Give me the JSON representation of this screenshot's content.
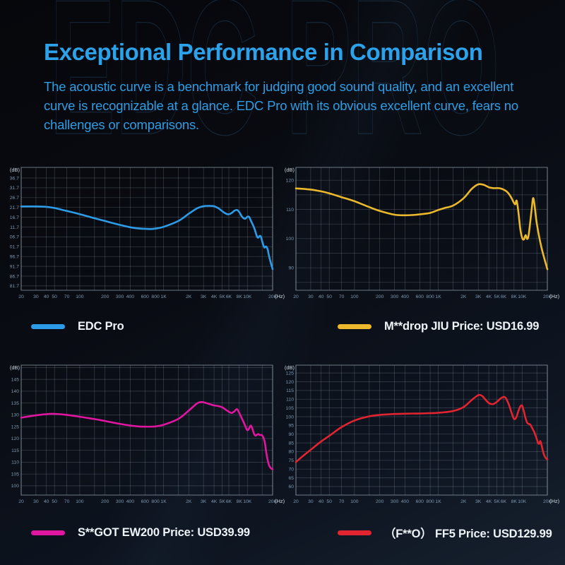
{
  "watermark": "EDC PRO",
  "header": {
    "title": "Exceptional Performance in Comparison",
    "description_lines": [
      "The acoustic curve is a benchmark for judging good sound quality, and an excellent",
      "curve is recognizable at a glance. EDC Pro with its obvious excellent curve, fears no",
      "challenges or comparisons."
    ]
  },
  "colors": {
    "accent_blue": "#2ba2ea",
    "curve_blue": "#2d9ce8",
    "curve_yellow": "#ecb82c",
    "curve_magenta": "#e016a0",
    "curve_red": "#e1242f",
    "grid": "rgba(190,205,220,0.26)",
    "plot_border": "rgba(190,205,220,0.55)",
    "tick_text": "#7e97ae",
    "unit_text": "#cdd9e4"
  },
  "legends": [
    {
      "label": "EDC Pro",
      "color": "#2d9ce8"
    },
    {
      "label": "M**drop JIU Price: USD16.99",
      "color": "#ecb82c"
    },
    {
      "label": "S**GOT EW200 Price: USD39.99",
      "color": "#e016a0"
    },
    {
      "label": "（F**O） FF5 Price: USD129.99",
      "color": "#e1242f"
    }
  ],
  "chart_data": [
    {
      "type": "line",
      "name": "EDC Pro",
      "color": "#2d9ce8",
      "x_unit": "(Hz)",
      "y_unit": "(dB)",
      "x_scale": "log",
      "x_tick_labels": [
        "20",
        "30",
        "40",
        "50",
        "70",
        "100",
        "200",
        "300",
        "400",
        "600",
        "800",
        "1K",
        "2K",
        "3K",
        "4K",
        "5K",
        "6K",
        "8K",
        "10K",
        "20K"
      ],
      "x_tick_freqs": [
        20,
        30,
        40,
        50,
        70,
        100,
        200,
        300,
        400,
        600,
        800,
        1000,
        2000,
        3000,
        4000,
        5000,
        6000,
        8000,
        10000,
        20000
      ],
      "grid_freqs": [
        20,
        30,
        40,
        50,
        70,
        100,
        150,
        200,
        300,
        400,
        600,
        800,
        1000,
        1500,
        2000,
        3000,
        4000,
        5000,
        6000,
        8000,
        10000,
        15000,
        20000
      ],
      "y_tick_values": [
        136.7,
        131.7,
        126.7,
        121.7,
        116.7,
        111.7,
        106.7,
        101.7,
        96.7,
        91.7,
        86.7,
        81.7
      ],
      "y_grid": [
        81.7,
        136.7,
        5
      ],
      "ylim": [
        79.5,
        142.1
      ],
      "points": [
        [
          20,
          122.2
        ],
        [
          30,
          122.2
        ],
        [
          40,
          122.0
        ],
        [
          50,
          121.4
        ],
        [
          70,
          119.9
        ],
        [
          100,
          118.3
        ],
        [
          150,
          116.2
        ],
        [
          200,
          114.8
        ],
        [
          300,
          112.8
        ],
        [
          400,
          111.6
        ],
        [
          500,
          111.0
        ],
        [
          600,
          110.8
        ],
        [
          700,
          110.7
        ],
        [
          800,
          110.9
        ],
        [
          1000,
          111.8
        ],
        [
          1500,
          114.8
        ],
        [
          2000,
          118.5
        ],
        [
          2500,
          121.2
        ],
        [
          3000,
          122.3
        ],
        [
          3500,
          122.5
        ],
        [
          4000,
          122.3
        ],
        [
          4500,
          121.3
        ],
        [
          5000,
          119.8
        ],
        [
          5500,
          118.6
        ],
        [
          6000,
          118.2
        ],
        [
          6500,
          118.9
        ],
        [
          7000,
          120.0
        ],
        [
          7500,
          120.4
        ],
        [
          8000,
          119.3
        ],
        [
          8500,
          117.4
        ],
        [
          9000,
          116.2
        ],
        [
          9500,
          116.0
        ],
        [
          10000,
          117.0
        ],
        [
          10500,
          116.8
        ],
        [
          11000,
          115.0
        ],
        [
          12000,
          111.5
        ],
        [
          13000,
          107.0
        ],
        [
          13500,
          106.3
        ],
        [
          14000,
          107.2
        ],
        [
          14500,
          106.8
        ],
        [
          15000,
          104.5
        ],
        [
          15500,
          102.5
        ],
        [
          16000,
          101.2
        ],
        [
          16500,
          101.8
        ],
        [
          17000,
          101.5
        ],
        [
          17500,
          100.2
        ],
        [
          18000,
          97.5
        ],
        [
          19000,
          93.5
        ],
        [
          20000,
          90.3
        ]
      ]
    },
    {
      "type": "line",
      "name": "M**drop JIU",
      "color": "#ecb82c",
      "x_unit": "(Hz)",
      "y_unit": "(dB)",
      "x_scale": "log",
      "x_tick_labels": [
        "20",
        "30",
        "40",
        "50",
        "70",
        "100",
        "200",
        "300",
        "400",
        "600",
        "800",
        "1K",
        "2K",
        "3K",
        "4K",
        "5K",
        "6K",
        "8K",
        "10K",
        "20K"
      ],
      "x_tick_freqs": [
        20,
        30,
        40,
        50,
        70,
        100,
        200,
        300,
        400,
        600,
        800,
        1000,
        2000,
        3000,
        4000,
        5000,
        6000,
        8000,
        10000,
        20000
      ],
      "grid_freqs": [
        20,
        30,
        40,
        50,
        70,
        100,
        150,
        200,
        300,
        400,
        600,
        800,
        1000,
        1500,
        2000,
        3000,
        4000,
        5000,
        6000,
        8000,
        10000,
        15000,
        20000
      ],
      "y_tick_values": [
        120,
        110,
        100,
        90
      ],
      "y_grid": [
        85,
        120,
        5
      ],
      "ylim": [
        82.3,
        124.4
      ],
      "points": [
        [
          20,
          117.2
        ],
        [
          30,
          116.8
        ],
        [
          40,
          116.2
        ],
        [
          50,
          115.5
        ],
        [
          70,
          114.2
        ],
        [
          100,
          112.8
        ],
        [
          150,
          110.8
        ],
        [
          200,
          109.5
        ],
        [
          300,
          108.2
        ],
        [
          400,
          108.0
        ],
        [
          500,
          108.1
        ],
        [
          600,
          108.3
        ],
        [
          800,
          108.8
        ],
        [
          1000,
          109.8
        ],
        [
          1200,
          110.5
        ],
        [
          1500,
          111.3
        ],
        [
          2000,
          113.8
        ],
        [
          2500,
          117.0
        ],
        [
          3000,
          118.6
        ],
        [
          3500,
          118.4
        ],
        [
          4000,
          117.6
        ],
        [
          4500,
          117.3
        ],
        [
          5000,
          117.3
        ],
        [
          5500,
          117.2
        ],
        [
          6000,
          116.8
        ],
        [
          6500,
          116.2
        ],
        [
          7000,
          115.2
        ],
        [
          7500,
          113.8
        ],
        [
          8000,
          112.2
        ],
        [
          8300,
          111.8
        ],
        [
          8600,
          113.0
        ],
        [
          9000,
          109.5
        ],
        [
          9500,
          103.5
        ],
        [
          10000,
          100.3
        ],
        [
          10500,
          99.7
        ],
        [
          11000,
          101.2
        ],
        [
          11500,
          99.9
        ],
        [
          12000,
          101.5
        ],
        [
          13000,
          110.0
        ],
        [
          13500,
          113.8
        ],
        [
          14000,
          112.0
        ],
        [
          15000,
          105.0
        ],
        [
          17000,
          97.0
        ],
        [
          20000,
          89.5
        ]
      ]
    },
    {
      "type": "line",
      "name": "S**GOT EW200",
      "color": "#e016a0",
      "x_unit": "(Hz)",
      "y_unit": "(dB)",
      "x_scale": "log",
      "x_tick_labels": [
        "20",
        "30",
        "40",
        "50",
        "70",
        "100",
        "200",
        "300",
        "400",
        "600",
        "800",
        "1K",
        "2K",
        "3K",
        "4K",
        "5K",
        "6K",
        "8K",
        "10K",
        "20K"
      ],
      "x_tick_freqs": [
        20,
        30,
        40,
        50,
        70,
        100,
        200,
        300,
        400,
        600,
        800,
        1000,
        2000,
        3000,
        4000,
        5000,
        6000,
        8000,
        10000,
        20000
      ],
      "grid_freqs": [
        20,
        30,
        40,
        50,
        70,
        100,
        150,
        200,
        300,
        400,
        600,
        800,
        1000,
        1500,
        2000,
        3000,
        4000,
        5000,
        6000,
        8000,
        10000,
        15000,
        20000
      ],
      "y_tick_values": [
        145,
        140,
        135,
        130,
        125,
        120,
        115,
        110,
        105,
        100
      ],
      "y_grid": [
        100,
        150,
        5
      ],
      "ylim": [
        96.1,
        151.0
      ],
      "points": [
        [
          20,
          128.8
        ],
        [
          30,
          129.8
        ],
        [
          40,
          130.3
        ],
        [
          50,
          130.4
        ],
        [
          70,
          130.0
        ],
        [
          100,
          129.2
        ],
        [
          150,
          128.2
        ],
        [
          200,
          127.4
        ],
        [
          300,
          126.2
        ],
        [
          400,
          125.5
        ],
        [
          500,
          125.1
        ],
        [
          600,
          125.0
        ],
        [
          800,
          125.1
        ],
        [
          1000,
          125.8
        ],
        [
          1500,
          128.3
        ],
        [
          2000,
          131.8
        ],
        [
          2500,
          134.8
        ],
        [
          2800,
          135.4
        ],
        [
          3000,
          135.3
        ],
        [
          3500,
          134.6
        ],
        [
          4000,
          134.0
        ],
        [
          4500,
          133.7
        ],
        [
          5000,
          133.2
        ],
        [
          5500,
          132.2
        ],
        [
          6000,
          131.3
        ],
        [
          6500,
          130.8
        ],
        [
          7000,
          131.5
        ],
        [
          7500,
          132.4
        ],
        [
          8000,
          130.8
        ],
        [
          8500,
          128.8
        ],
        [
          9000,
          127.0
        ],
        [
          9500,
          125.0
        ],
        [
          10000,
          123.5
        ],
        [
          10500,
          124.3
        ],
        [
          11000,
          125.5
        ],
        [
          11500,
          124.0
        ],
        [
          12000,
          122.0
        ],
        [
          12500,
          121.2
        ],
        [
          13000,
          121.6
        ],
        [
          13500,
          121.9
        ],
        [
          14000,
          121.5
        ],
        [
          15000,
          121.3
        ],
        [
          16000,
          119.0
        ],
        [
          17000,
          113.0
        ],
        [
          18000,
          109.0
        ],
        [
          19000,
          107.5
        ],
        [
          20000,
          107.0
        ]
      ]
    },
    {
      "type": "line",
      "name": "（F**O） FF5",
      "color": "#e1242f",
      "x_unit": "(Hz)",
      "y_unit": "(dB)",
      "x_scale": "log",
      "x_tick_labels": [
        "20",
        "30",
        "40",
        "50",
        "70",
        "100",
        "200",
        "300",
        "400",
        "600",
        "800",
        "1K",
        "2K",
        "3K",
        "4K",
        "5K",
        "6K",
        "8K",
        "10K",
        "20K"
      ],
      "x_tick_freqs": [
        20,
        30,
        40,
        50,
        70,
        100,
        200,
        300,
        400,
        600,
        800,
        1000,
        2000,
        3000,
        4000,
        5000,
        6000,
        8000,
        10000,
        20000
      ],
      "grid_freqs": [
        20,
        30,
        40,
        50,
        70,
        100,
        150,
        200,
        300,
        400,
        600,
        800,
        1000,
        1500,
        2000,
        3000,
        4000,
        5000,
        6000,
        8000,
        10000,
        15000,
        20000
      ],
      "y_tick_values": [
        125,
        120,
        115,
        110,
        105,
        100,
        95,
        90,
        85,
        80,
        75,
        70,
        65,
        60
      ],
      "y_grid": [
        60,
        125,
        5
      ],
      "ylim": [
        55.1,
        129.5
      ],
      "points": [
        [
          20,
          74.0
        ],
        [
          25,
          78.0
        ],
        [
          30,
          81.0
        ],
        [
          40,
          85.8
        ],
        [
          50,
          89.0
        ],
        [
          70,
          94.0
        ],
        [
          100,
          97.8
        ],
        [
          150,
          100.2
        ],
        [
          200,
          101.0
        ],
        [
          300,
          101.5
        ],
        [
          400,
          101.7
        ],
        [
          500,
          101.8
        ],
        [
          600,
          101.8
        ],
        [
          800,
          102.0
        ],
        [
          1000,
          102.2
        ],
        [
          1500,
          103.2
        ],
        [
          2000,
          105.5
        ],
        [
          2500,
          109.5
        ],
        [
          3000,
          112.3
        ],
        [
          3300,
          112.0
        ],
        [
          3500,
          110.8
        ],
        [
          4000,
          107.8
        ],
        [
          4500,
          107.2
        ],
        [
          5000,
          108.5
        ],
        [
          5500,
          110.3
        ],
        [
          6000,
          111.3
        ],
        [
          6300,
          111.0
        ],
        [
          6500,
          110.0
        ],
        [
          7000,
          106.5
        ],
        [
          7500,
          102.0
        ],
        [
          8000,
          98.7
        ],
        [
          8500,
          99.5
        ],
        [
          9000,
          103.0
        ],
        [
          9500,
          105.8
        ],
        [
          10000,
          106.3
        ],
        [
          10500,
          103.0
        ],
        [
          11000,
          99.0
        ],
        [
          11500,
          96.5
        ],
        [
          12000,
          95.8
        ],
        [
          12500,
          95.5
        ],
        [
          13000,
          94.0
        ],
        [
          14000,
          91.0
        ],
        [
          15000,
          87.0
        ],
        [
          15500,
          85.0
        ],
        [
          16000,
          84.5
        ],
        [
          16500,
          86.0
        ],
        [
          17000,
          84.0
        ],
        [
          18000,
          79.0
        ],
        [
          19000,
          76.5
        ],
        [
          20000,
          75.5
        ]
      ]
    }
  ]
}
